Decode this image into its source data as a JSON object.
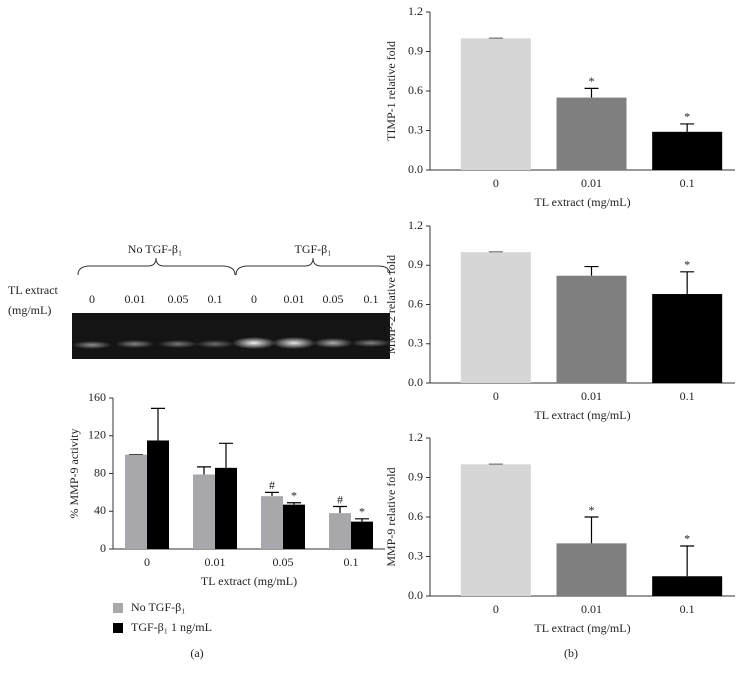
{
  "chart_data": [
    {
      "type": "bar",
      "y_label": "% MMP-9 activity",
      "x_label": "TL extract (mg/mL)",
      "categories": [
        "0",
        "0.01",
        "0.05",
        "0.1"
      ],
      "series": [
        {
          "name": "No TGF-β₁",
          "color": "#a8a8ac",
          "values": [
            100,
            79,
            56,
            38
          ],
          "errors": [
            0,
            8,
            4,
            7
          ],
          "markers": [
            null,
            null,
            "#",
            "#"
          ]
        },
        {
          "name": "TGF-β₁ 1 ng/mL",
          "color": "#000000",
          "values": [
            115,
            86,
            47,
            29
          ],
          "errors": [
            34,
            26,
            2,
            3
          ],
          "markers": [
            null,
            null,
            "*",
            "*"
          ]
        }
      ],
      "ylim": [
        0,
        160
      ],
      "yticks": [
        0,
        40,
        80,
        120,
        160
      ]
    },
    {
      "type": "bar",
      "y_label": "TIMP-1 relative fold",
      "x_label": "TL extract (mg/mL)",
      "categories": [
        "0",
        "0.01",
        "0.1"
      ],
      "values": [
        1.0,
        0.55,
        0.29
      ],
      "errors": [
        0,
        0.07,
        0.06
      ],
      "markers": [
        null,
        "*",
        "*"
      ],
      "colors": [
        "#d6d6d6",
        "#7f7f7f",
        "#000000"
      ],
      "ylim": [
        0,
        1.2
      ],
      "yticks": [
        {
          "value": 0,
          "label": "0.0"
        },
        0.3,
        0.6,
        0.9,
        1.2
      ]
    },
    {
      "type": "bar",
      "y_label": "MMP-2 relative fold",
      "x_label": "TL extract (mg/mL)",
      "categories": [
        "0",
        "0.01",
        "0.1"
      ],
      "values": [
        1.0,
        0.82,
        0.68
      ],
      "errors": [
        0,
        0.07,
        0.17
      ],
      "markers": [
        null,
        null,
        "*"
      ],
      "colors": [
        "#d6d6d6",
        "#7f7f7f",
        "#000000"
      ],
      "ylim": [
        0,
        1.2
      ],
      "yticks": [
        {
          "value": 0,
          "label": "0.0"
        },
        0.3,
        0.6,
        0.9,
        1.2
      ]
    },
    {
      "type": "bar",
      "y_label": "MMP-9 relative fold",
      "x_label": "TL extract (mg/mL)",
      "categories": [
        "0",
        "0.01",
        "0.1"
      ],
      "values": [
        1.0,
        0.4,
        0.15
      ],
      "errors": [
        0,
        0.2,
        0.23
      ],
      "markers": [
        null,
        "*",
        "*"
      ],
      "colors": [
        "#d6d6d6",
        "#7f7f7f",
        "#000000"
      ],
      "ylim": [
        0,
        1.2
      ],
      "yticks": [
        {
          "value": 0,
          "label": "0.0"
        },
        0.3,
        0.6,
        0.9,
        1.2
      ]
    }
  ],
  "gel": {
    "row_label": [
      "TL extract",
      "(mg/mL)"
    ],
    "groups": [
      "No TGF-β₁",
      "TGF-β₁"
    ],
    "lanes": [
      "0",
      "0.01",
      "0.05",
      "0.1",
      "0",
      "0.01",
      "0.05",
      "0.1"
    ]
  },
  "panel_labels": [
    "(a)",
    "(b)"
  ]
}
